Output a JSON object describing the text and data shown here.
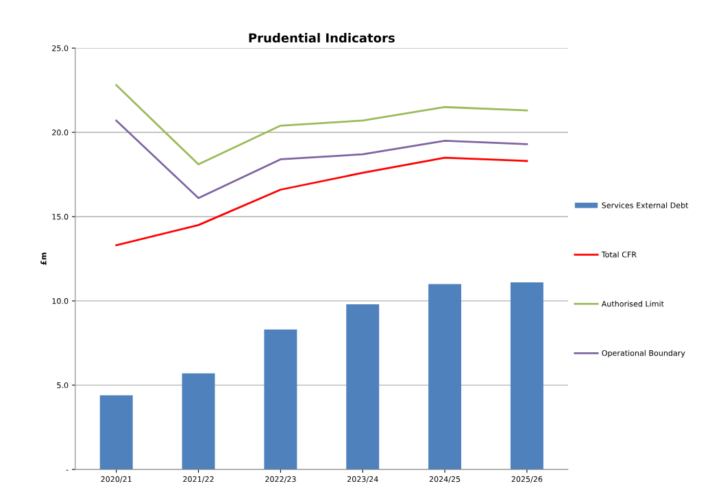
{
  "chart_data": {
    "type": "bar",
    "title": "Prudential Indicators",
    "ylabel": "£m",
    "categories": [
      "2020/21",
      "2021/22",
      "2022/23",
      "2023/24",
      "2024/25",
      "2025/26"
    ],
    "series": [
      {
        "name": "Services External Debt",
        "color": "#4f81bd",
        "values": [
          4.4,
          5.7,
          8.3,
          9.8,
          11.0,
          11.1
        ]
      },
      {
        "name": "Total CFR",
        "type": "line",
        "color": "#ff0000",
        "values": [
          13.3,
          14.5,
          16.6,
          17.6,
          18.5,
          18.3
        ]
      },
      {
        "name": "Authorised Limit",
        "type": "line",
        "color": "#9bbb59",
        "values": [
          22.8,
          18.1,
          20.4,
          20.7,
          21.5,
          21.3
        ]
      },
      {
        "name": "Operational Boundary",
        "type": "line",
        "color": "#8064a2",
        "values": [
          20.7,
          16.1,
          18.4,
          18.7,
          19.5,
          19.3
        ]
      }
    ],
    "ylim": [
      0,
      25
    ],
    "yticks": [
      {
        "value": 0,
        "label": "-"
      },
      {
        "value": 5,
        "label": "5.0"
      },
      {
        "value": 10,
        "label": "10.0"
      },
      {
        "value": 15,
        "label": "15.0"
      },
      {
        "value": 20,
        "label": "20.0"
      },
      {
        "value": 25,
        "label": "25.0"
      }
    ],
    "grid": "y",
    "legend": "right"
  }
}
